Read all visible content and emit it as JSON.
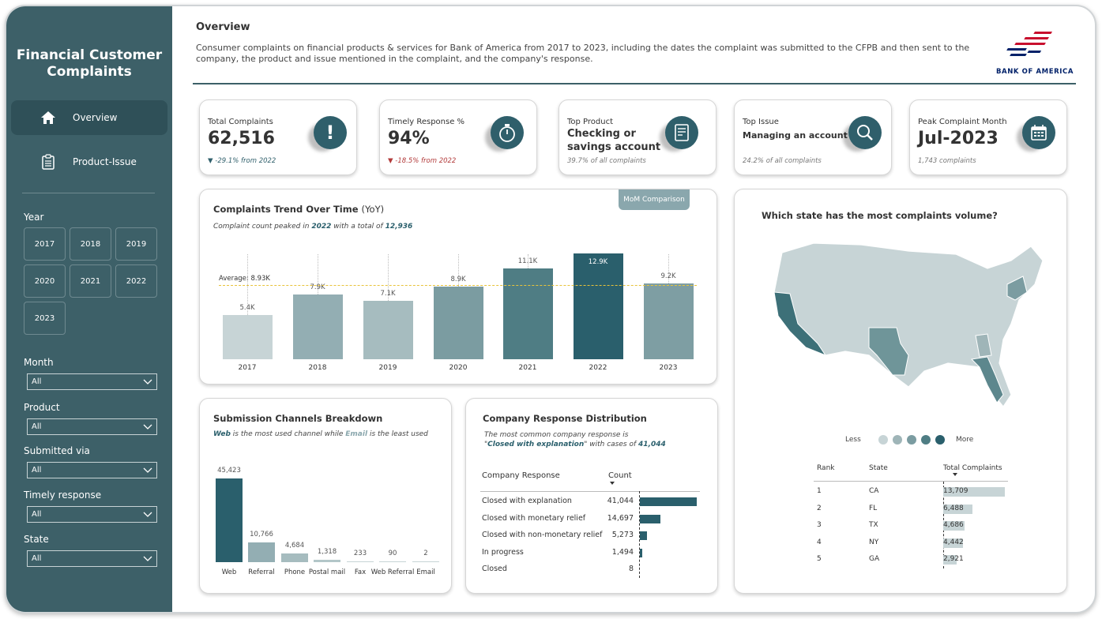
{
  "sidebar": {
    "title_line1": "Financial Customer",
    "title_line2": "Complaints",
    "nav": [
      {
        "label": "Overview"
      },
      {
        "label": "Product-Issue"
      }
    ],
    "year_label": "Year",
    "years": [
      "2017",
      "2018",
      "2019",
      "2020",
      "2021",
      "2022",
      "2023"
    ],
    "filters": [
      {
        "label": "Month",
        "value": "All"
      },
      {
        "label": "Product",
        "value": "All"
      },
      {
        "label": "Submitted via",
        "value": "All"
      },
      {
        "label": "Timely response",
        "value": "All"
      },
      {
        "label": "State",
        "value": "All"
      }
    ]
  },
  "header": {
    "title": "Overview",
    "description": "Consumer complaints on financial products & services for Bank of America from 2017 to 2023, including the dates the complaint was submitted to the CFPB and then sent to the company, the product and issue mentioned in the complaint, and the company's response.",
    "logo_text": "BANK OF AMERICA"
  },
  "kpis": [
    {
      "label": "Total Complaints",
      "value": "62,516",
      "sub": "-29.1% from 2022",
      "trend": "down-good",
      "icon": "exclamation-icon"
    },
    {
      "label": "Timely Response %",
      "value": "94%",
      "sub": "-18.5% from 2022",
      "trend": "down-bad",
      "icon": "stopwatch-icon"
    },
    {
      "label": "Top Product",
      "value": "Checking or savings account",
      "sub": "39.7% of all complaints",
      "icon": "document-icon"
    },
    {
      "label": "Top Issue",
      "value": "Managing an account",
      "sub": "24.2% of all complaints",
      "icon": "search-icon"
    },
    {
      "label": "Peak Complaint Month",
      "value": "Jul-2023",
      "sub": "1,743 complaints",
      "icon": "calendar-icon"
    }
  ],
  "colors": {
    "sidebar": "#3d6068",
    "accent": "#2a5f6c",
    "down_good": "#2f5f6b",
    "down_bad": "#b23a3a",
    "average_line": "#e8c33a"
  },
  "trend": {
    "title": "Complaints Trend Over Time",
    "title_suffix": "(YoY)",
    "sub_prefix": "Complaint count peaked in",
    "sub_year": "2022",
    "sub_mid": "with a total of",
    "sub_total": "12,936",
    "button": "MoM Comparison",
    "average_label": "Average: 8.93K"
  },
  "channels": {
    "title": "Submission Channels Breakdown",
    "sub_a": "Web",
    "sub_b": "is the most used channel while",
    "sub_c": "Email",
    "sub_d": "is the least used"
  },
  "response": {
    "title": "Company Response Distribution",
    "sub_line1": "The most common company response is",
    "sub_q1": "\"",
    "sub_hl": "Closed with explanation",
    "sub_q2": "\" with cases of",
    "sub_num": "41,044",
    "col1": "Company Response",
    "col2": "Count"
  },
  "map": {
    "title": "Which state has the most complaints volume?",
    "legend_less": "Less",
    "legend_more": "More",
    "col_rank": "Rank",
    "col_state": "State",
    "col_total": "Total Complaints"
  },
  "chart_data": [
    {
      "type": "bar",
      "title": "Complaints Trend Over Time",
      "categories": [
        "2017",
        "2018",
        "2019",
        "2020",
        "2021",
        "2022",
        "2023"
      ],
      "values": [
        5400,
        7900,
        7100,
        8900,
        11100,
        12900,
        9200
      ],
      "labels": [
        "5.4K",
        "7.9K",
        "7.1K",
        "8.9K",
        "11.1K",
        "12.9K",
        "9.2K"
      ],
      "average": 8930,
      "ylim": [
        0,
        13000
      ]
    },
    {
      "type": "bar",
      "title": "Submission Channels Breakdown",
      "categories": [
        "Web",
        "Referral",
        "Phone",
        "Postal mail",
        "Fax",
        "Web Referral",
        "Email"
      ],
      "values": [
        45423,
        10766,
        4684,
        1318,
        233,
        90,
        2
      ],
      "labels": [
        "45,423",
        "10,766",
        "4,684",
        "1,318",
        "233",
        "90",
        "2"
      ],
      "ylim": [
        0,
        45423
      ]
    },
    {
      "type": "bar",
      "title": "Company Response Distribution",
      "categories": [
        "Closed with explanation",
        "Closed with monetary relief",
        "Closed with non-monetary relief",
        "In progress",
        "Closed"
      ],
      "values": [
        41044,
        14697,
        5273,
        1494,
        8
      ],
      "labels": [
        "41,044",
        "14,697",
        "5,273",
        "1,494",
        "8"
      ]
    },
    {
      "type": "table",
      "title": "Which state has the most complaints volume?",
      "rows": [
        {
          "rank": "1",
          "state": "CA",
          "value": 13709,
          "label": "13,709"
        },
        {
          "rank": "2",
          "state": "FL",
          "value": 6488,
          "label": "6,488"
        },
        {
          "rank": "3",
          "state": "TX",
          "value": 4686,
          "label": "4,686"
        },
        {
          "rank": "4",
          "state": "NY",
          "value": 4442,
          "label": "4,442"
        },
        {
          "rank": "5",
          "state": "GA",
          "value": 2921,
          "label": "2,921"
        }
      ]
    }
  ]
}
